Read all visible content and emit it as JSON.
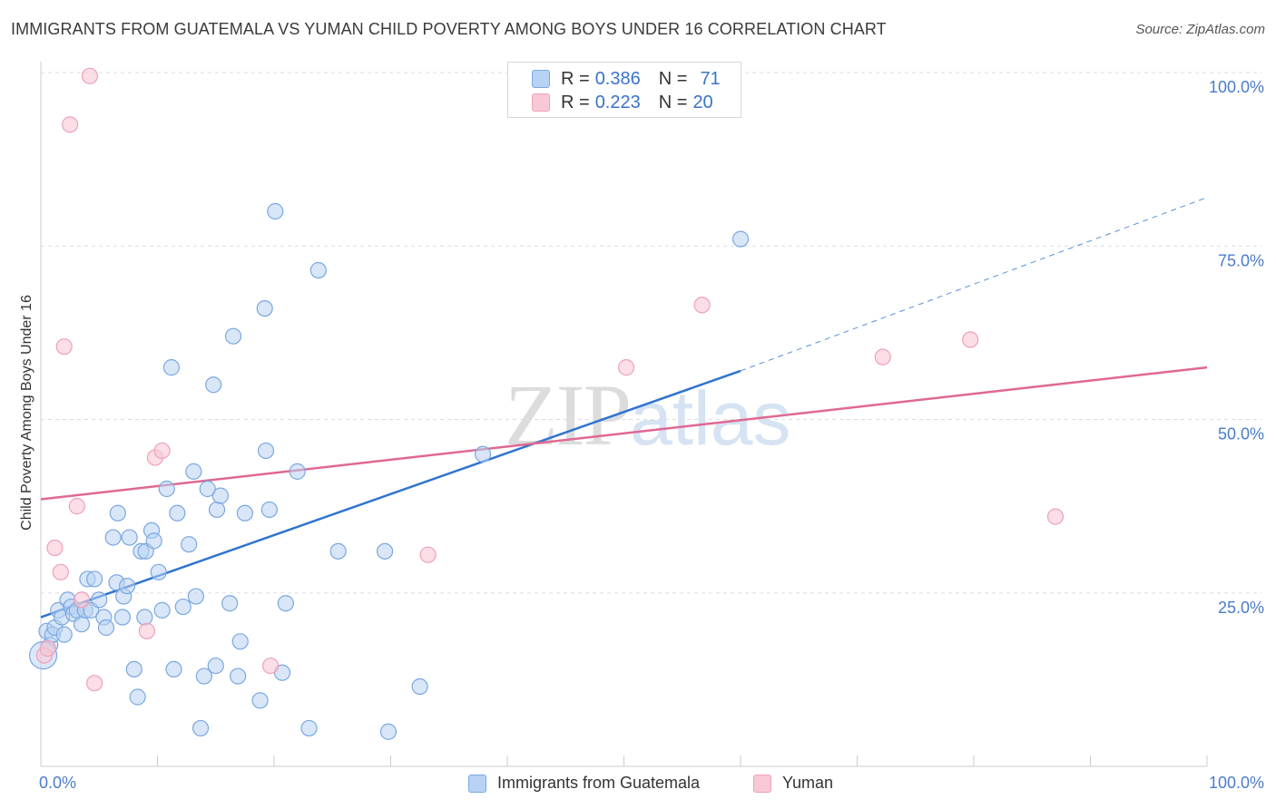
{
  "title": "IMMIGRANTS FROM GUATEMALA VS YUMAN CHILD POVERTY AMONG BOYS UNDER 16 CORRELATION CHART",
  "source": "Source: ZipAtlas.com",
  "watermark": {
    "zip": "ZIP",
    "atlas": "atlas"
  },
  "legend_top": {
    "rows": [
      {
        "r_label": "R =",
        "r_value": "0.386",
        "n_label": "N =",
        "n_value": "71"
      },
      {
        "r_label": "R =",
        "r_value": "0.223",
        "n_label": "N =",
        "n_value": "20"
      }
    ]
  },
  "legend_bottom": {
    "series1": "Immigrants from Guatemala",
    "series2": "Yuman"
  },
  "colors": {
    "blue_fill": "#b8d2f3",
    "blue_stroke": "#7aa8e0",
    "blue_line": "#2f74cf",
    "pink_fill": "#f8c8d6",
    "pink_stroke": "#eea1b8",
    "pink_line": "#e06892",
    "axis_label": "#4a7cc9",
    "grid": "#dddddd"
  },
  "chart_data": {
    "type": "scatter",
    "title": "IMMIGRANTS FROM GUATEMALA VS YUMAN CHILD POVERTY AMONG BOYS UNDER 16 CORRELATION CHART",
    "xlabel": "",
    "ylabel": "Child Poverty Among Boys Under 16",
    "xlim": [
      0,
      100
    ],
    "ylim": [
      0,
      100
    ],
    "x_tick_labels": [
      "0.0%",
      "100.0%"
    ],
    "y_ticks": [
      25,
      50,
      75,
      100
    ],
    "y_tick_labels": [
      "25.0%",
      "50.0%",
      "75.0%",
      "100.0%"
    ],
    "series": [
      {
        "name": "Immigrants from Guatemala",
        "R": 0.386,
        "N": 71,
        "trend": {
          "x0": 0,
          "y0": 21.5,
          "x1": 60,
          "y1": 57.0,
          "dashed_to_x": 100,
          "dashed_to_y": 82.0
        },
        "points": [
          [
            0.5,
            19.5
          ],
          [
            0.8,
            17.5
          ],
          [
            1.0,
            19.0
          ],
          [
            1.2,
            20.0
          ],
          [
            1.5,
            22.5
          ],
          [
            1.8,
            21.5
          ],
          [
            2.0,
            19.0
          ],
          [
            2.3,
            24.0
          ],
          [
            2.6,
            23.0
          ],
          [
            2.8,
            22.0
          ],
          [
            3.1,
            22.5
          ],
          [
            3.5,
            20.5
          ],
          [
            3.8,
            22.5
          ],
          [
            4.0,
            27.0
          ],
          [
            4.3,
            22.5
          ],
          [
            4.6,
            27.0
          ],
          [
            5.0,
            24.0
          ],
          [
            5.4,
            21.5
          ],
          [
            5.6,
            20.0
          ],
          [
            6.2,
            33.0
          ],
          [
            6.5,
            26.5
          ],
          [
            6.6,
            36.5
          ],
          [
            7.0,
            21.5
          ],
          [
            7.1,
            24.5
          ],
          [
            7.4,
            26.0
          ],
          [
            7.6,
            33.0
          ],
          [
            8.0,
            14.0
          ],
          [
            8.3,
            10.0
          ],
          [
            8.6,
            31.0
          ],
          [
            8.9,
            21.5
          ],
          [
            9.0,
            31.0
          ],
          [
            9.5,
            34.0
          ],
          [
            9.7,
            32.5
          ],
          [
            10.1,
            28.0
          ],
          [
            10.4,
            22.5
          ],
          [
            10.8,
            40.0
          ],
          [
            11.2,
            57.5
          ],
          [
            11.4,
            14.0
          ],
          [
            11.7,
            36.5
          ],
          [
            12.2,
            23.0
          ],
          [
            12.7,
            32.0
          ],
          [
            13.1,
            42.5
          ],
          [
            13.3,
            24.5
          ],
          [
            13.7,
            5.5
          ],
          [
            14.0,
            13.0
          ],
          [
            14.3,
            40.0
          ],
          [
            14.8,
            55.0
          ],
          [
            15.0,
            14.5
          ],
          [
            15.1,
            37.0
          ],
          [
            15.4,
            39.0
          ],
          [
            16.2,
            23.5
          ],
          [
            16.5,
            62.0
          ],
          [
            16.9,
            13.0
          ],
          [
            17.1,
            18.0
          ],
          [
            17.5,
            36.5
          ],
          [
            18.8,
            9.5
          ],
          [
            19.2,
            66.0
          ],
          [
            19.3,
            45.5
          ],
          [
            19.6,
            37.0
          ],
          [
            20.1,
            80.0
          ],
          [
            20.7,
            13.5
          ],
          [
            21.0,
            23.5
          ],
          [
            22.0,
            42.5
          ],
          [
            23.0,
            5.5
          ],
          [
            23.8,
            71.5
          ],
          [
            25.5,
            31.0
          ],
          [
            29.5,
            31.0
          ],
          [
            29.8,
            5.0
          ],
          [
            32.5,
            11.5
          ],
          [
            37.9,
            45.0
          ],
          [
            60.0,
            76.0
          ]
        ]
      },
      {
        "name": "Yuman",
        "R": 0.223,
        "N": 20,
        "trend": {
          "x0": 0,
          "y0": 38.5,
          "x1": 100,
          "y1": 57.5
        },
        "points": [
          [
            0.3,
            16.0
          ],
          [
            0.6,
            17.0
          ],
          [
            1.2,
            31.5
          ],
          [
            1.7,
            28.0
          ],
          [
            2.0,
            60.5
          ],
          [
            2.5,
            92.5
          ],
          [
            3.1,
            37.5
          ],
          [
            3.5,
            24.0
          ],
          [
            4.2,
            99.5
          ],
          [
            4.6,
            12.0
          ],
          [
            9.1,
            19.5
          ],
          [
            9.8,
            44.5
          ],
          [
            10.4,
            45.5
          ],
          [
            19.7,
            14.5
          ],
          [
            33.2,
            30.5
          ],
          [
            50.2,
            57.5
          ],
          [
            56.7,
            66.5
          ],
          [
            72.2,
            59.0
          ],
          [
            79.7,
            61.5
          ],
          [
            87.0,
            36.0
          ]
        ]
      }
    ]
  }
}
